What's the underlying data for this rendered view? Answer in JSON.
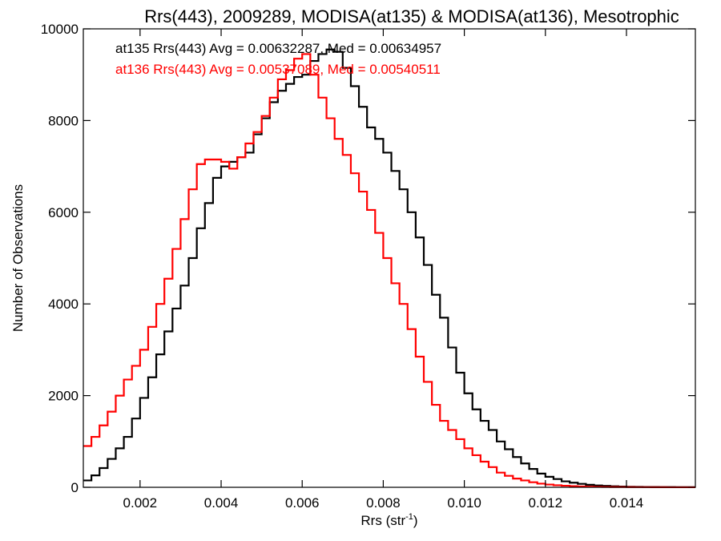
{
  "chart_data": {
    "type": "line",
    "title": "Rrs(443), 2009289, MODISA(at135) & MODISA(at136), Mesotrophic",
    "xlabel_main": "Rrs (str",
    "xlabel_sup": "-1",
    "xlabel_close": ")",
    "ylabel": "Number of Observations",
    "xlim": [
      0.0006,
      0.0157
    ],
    "ylim": [
      0,
      10000
    ],
    "xticks": [
      0.002,
      0.004,
      0.006,
      0.008,
      0.01,
      0.012,
      0.014
    ],
    "xtick_labels": [
      "0.002",
      "0.004",
      "0.006",
      "0.008",
      "0.010",
      "0.012",
      "0.014"
    ],
    "yticks": [
      0,
      2000,
      4000,
      6000,
      8000,
      10000
    ],
    "ytick_labels": [
      "0",
      "2000",
      "4000",
      "6000",
      "8000",
      "10000"
    ],
    "grid": false,
    "step": "histogram",
    "series": [
      {
        "name": "at135",
        "color": "#000000",
        "annotation": "at135 Rrs(443) Avg = 0.00632287, Med = 0.00634957",
        "x": [
          0.0006,
          0.0008,
          0.001,
          0.0012,
          0.0014,
          0.0016,
          0.0018,
          0.002,
          0.0022,
          0.0024,
          0.0026,
          0.0028,
          0.003,
          0.0032,
          0.0034,
          0.0036,
          0.0038,
          0.004,
          0.0042,
          0.0044,
          0.0046,
          0.0048,
          0.005,
          0.0052,
          0.0054,
          0.0056,
          0.0058,
          0.006,
          0.0062,
          0.0064,
          0.0066,
          0.0068,
          0.007,
          0.0072,
          0.0074,
          0.0076,
          0.0078,
          0.008,
          0.0082,
          0.0084,
          0.0086,
          0.0088,
          0.009,
          0.0092,
          0.0094,
          0.0096,
          0.0098,
          0.01,
          0.0102,
          0.0104,
          0.0106,
          0.0108,
          0.011,
          0.0112,
          0.0114,
          0.0116,
          0.0118,
          0.012,
          0.0122,
          0.0124,
          0.0126,
          0.0128,
          0.013,
          0.0132,
          0.0134,
          0.0136,
          0.0138,
          0.014,
          0.0142,
          0.0144,
          0.0146,
          0.0148,
          0.015,
          0.0152,
          0.0154,
          0.0157
        ],
        "values": [
          150,
          260,
          420,
          620,
          850,
          1100,
          1500,
          1950,
          2400,
          2900,
          3400,
          3900,
          4400,
          5000,
          5650,
          6200,
          6750,
          7000,
          7100,
          7200,
          7300,
          7700,
          8050,
          8400,
          8650,
          8800,
          8950,
          9000,
          9300,
          9450,
          9550,
          9500,
          9150,
          8750,
          8300,
          7850,
          7600,
          7300,
          6900,
          6500,
          6000,
          5450,
          4850,
          4200,
          3700,
          3050,
          2500,
          2050,
          1700,
          1450,
          1250,
          1000,
          830,
          660,
          520,
          400,
          300,
          230,
          180,
          130,
          100,
          75,
          55,
          40,
          30,
          22,
          16,
          12,
          10,
          8,
          6,
          5,
          4,
          3,
          2,
          2
        ]
      },
      {
        "name": "at136",
        "color": "#ff0000",
        "annotation": "at136 Rrs(443) Avg = 0.00537089, Med = 0.00540511",
        "x": [
          0.0006,
          0.0008,
          0.001,
          0.0012,
          0.0014,
          0.0016,
          0.0018,
          0.002,
          0.0022,
          0.0024,
          0.0026,
          0.0028,
          0.003,
          0.0032,
          0.0034,
          0.0036,
          0.0038,
          0.004,
          0.0042,
          0.0044,
          0.0046,
          0.0048,
          0.005,
          0.0052,
          0.0054,
          0.0056,
          0.0058,
          0.006,
          0.0062,
          0.0064,
          0.0066,
          0.0068,
          0.007,
          0.0072,
          0.0074,
          0.0076,
          0.0078,
          0.008,
          0.0082,
          0.0084,
          0.0086,
          0.0088,
          0.009,
          0.0092,
          0.0094,
          0.0096,
          0.0098,
          0.01,
          0.0102,
          0.0104,
          0.0106,
          0.0108,
          0.011,
          0.0112,
          0.0114,
          0.0116,
          0.0118,
          0.012,
          0.0122,
          0.0124,
          0.0126,
          0.0128,
          0.013,
          0.0132,
          0.0134,
          0.0136,
          0.0138,
          0.014,
          0.0142,
          0.0144,
          0.0146,
          0.0148,
          0.015,
          0.0152,
          0.0154,
          0.0157
        ],
        "values": [
          900,
          1100,
          1350,
          1650,
          2000,
          2350,
          2650,
          3000,
          3500,
          4000,
          4550,
          5200,
          5850,
          6500,
          7050,
          7150,
          7150,
          7100,
          6950,
          7200,
          7500,
          7750,
          8100,
          8500,
          8900,
          9100,
          9350,
          9450,
          9000,
          8500,
          8050,
          7600,
          7250,
          6850,
          6450,
          6050,
          5550,
          5000,
          4450,
          4000,
          3450,
          2850,
          2300,
          1800,
          1450,
          1250,
          1050,
          850,
          700,
          560,
          440,
          320,
          250,
          190,
          150,
          110,
          80,
          60,
          45,
          34,
          25,
          18,
          13,
          10,
          8,
          6,
          5,
          4,
          3,
          3,
          2,
          2,
          1,
          1,
          1,
          1
        ]
      }
    ]
  }
}
